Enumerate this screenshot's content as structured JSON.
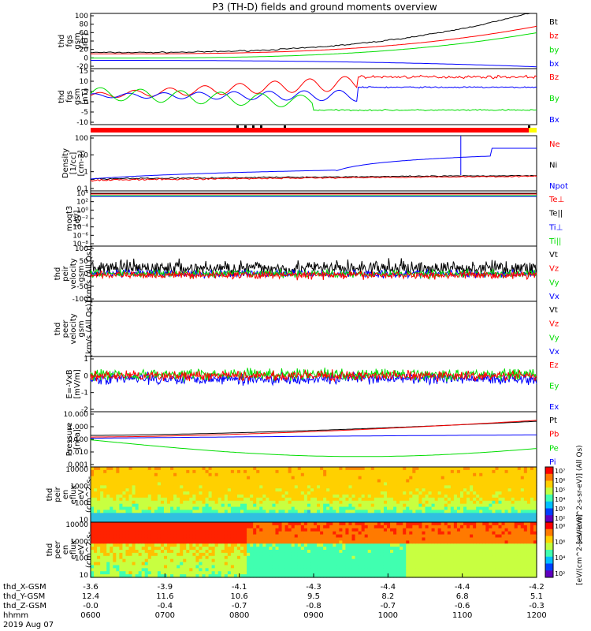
{
  "title": "P3 (TH-D) fields and ground moments overview",
  "colors": {
    "black": "#000000",
    "red": "#ff0000",
    "green": "#00dd00",
    "blue": "#0000ff"
  },
  "chart_data": [
    {
      "type": "line",
      "id": "p1",
      "ylabel": [
        "thd",
        "fgs",
        "gsm",
        "[nT]"
      ],
      "yticks": [
        "100",
        "80",
        "60",
        "40",
        "20",
        "0",
        "-20"
      ],
      "ylim": [
        -20,
        100
      ],
      "series": [
        {
          "name": "Bt",
          "color": "#000000"
        },
        {
          "name": "bz",
          "color": "#ff0000"
        },
        {
          "name": "by",
          "color": "#00dd00"
        },
        {
          "name": "bx",
          "color": "#0000ff"
        }
      ]
    },
    {
      "type": "line",
      "id": "p2",
      "ylabel": [
        "thd",
        "fgs",
        "gsm",
        "[nT]"
      ],
      "yticks": [
        "15",
        "10",
        "5",
        "0",
        "-5",
        "-10"
      ],
      "ylim": [
        -12,
        15
      ],
      "series": [
        {
          "name": "Bz",
          "color": "#ff0000"
        },
        {
          "name": "By",
          "color": "#00dd00"
        },
        {
          "name": "Bx",
          "color": "#0000ff"
        }
      ]
    },
    {
      "type": "line",
      "id": "p3",
      "ylabel": [
        "Density",
        "[1/cc]",
        "[cm-3]"
      ],
      "yticks": [
        "100",
        "10",
        "1",
        "0.1"
      ],
      "ylim": [
        0.05,
        200
      ],
      "log": true,
      "series": [
        {
          "name": "Ne",
          "color": "#ff0000"
        },
        {
          "name": "Ni",
          "color": "#000000"
        },
        {
          "name": "Npot",
          "color": "#0000ff"
        }
      ]
    },
    {
      "type": "line",
      "id": "p4",
      "ylabel": [
        "moqt3",
        "[eV]"
      ],
      "yticks": [
        "10⁴",
        "10²",
        "10⁰",
        "10⁻²",
        "10⁻⁴",
        "10⁻⁶",
        "10⁻⁸"
      ],
      "log": true,
      "series": [
        {
          "name": "Te⊥",
          "color": "#ff0000"
        },
        {
          "name": "Te||",
          "color": "#000000"
        },
        {
          "name": "Ti⊥",
          "color": "#0000ff"
        },
        {
          "name": "Ti||",
          "color": "#00dd00"
        }
      ]
    },
    {
      "type": "line",
      "id": "p5",
      "ylabel": [
        "thd",
        "peir",
        "velocity",
        "gsm",
        "[km/s (All Qs)]"
      ],
      "yticks": [
        "100",
        "50",
        "0",
        "-50",
        "-100"
      ],
      "ylim": [
        -100,
        100
      ],
      "series": [
        {
          "name": "Vt",
          "color": "#000000"
        },
        {
          "name": "Vz",
          "color": "#ff0000"
        },
        {
          "name": "Vy",
          "color": "#00dd00"
        },
        {
          "name": "Vx",
          "color": "#0000ff"
        }
      ]
    },
    {
      "type": "line",
      "id": "p6",
      "ylabel": [
        "thd",
        "peer",
        "velocity",
        "gsm",
        "[km/s (All Qs)]"
      ],
      "yticks": [],
      "series": [
        {
          "name": "Vt",
          "color": "#000000"
        },
        {
          "name": "Vz",
          "color": "#ff0000"
        },
        {
          "name": "Vy",
          "color": "#00dd00"
        },
        {
          "name": "Vx",
          "color": "#0000ff"
        }
      ]
    },
    {
      "type": "line",
      "id": "p7",
      "ylabel": [
        "E=-VxB",
        "[mV/m]"
      ],
      "yticks": [
        "1",
        "0",
        "-1",
        "-2"
      ],
      "ylim": [
        -2.4,
        1.6
      ],
      "series": [
        {
          "name": "Ez",
          "color": "#ff0000"
        },
        {
          "name": "Ey",
          "color": "#00dd00"
        },
        {
          "name": "Ex",
          "color": "#0000ff"
        }
      ]
    },
    {
      "type": "line",
      "id": "p8",
      "ylabel": [
        "Pressure",
        "[nPa]"
      ],
      "yticks": [
        "10.000",
        "1.000",
        "0.100",
        "0.010",
        "0.001"
      ],
      "ylim": [
        0.0007,
        14
      ],
      "log": true,
      "series": [
        {
          "name": "Pt",
          "color": "#000000"
        },
        {
          "name": "Pb",
          "color": "#ff0000"
        },
        {
          "name": "Pe",
          "color": "#00dd00"
        },
        {
          "name": "Pi",
          "color": "#0000ff"
        }
      ]
    },
    {
      "type": "heatmap",
      "id": "p9",
      "ylabel": [
        "thd",
        "peir",
        "en",
        "eflux",
        "eV",
        "(cm^2-s-",
        "sr-eV)"
      ],
      "yticks": [
        "10000",
        "1000",
        "100",
        "10"
      ]
    },
    {
      "type": "heatmap",
      "id": "p10",
      "ylabel": [
        "thd",
        "peer",
        "en",
        "eflux",
        "eV",
        "(cm^2-s-",
        "sr-eV)"
      ],
      "yticks": [
        "10000",
        "1000",
        "100",
        "10"
      ]
    }
  ],
  "colorbar1": {
    "label": "[eV/(cm^2-s-sr-eV)] (All Qs)",
    "ticks": [
      "10⁷",
      "10⁶",
      "10⁵",
      "10⁴",
      "10³",
      "10²"
    ]
  },
  "colorbar2": {
    "label": "[eV/(cm^2-s-sr-eV)]",
    "ticks": [
      "10⁸",
      "10⁶",
      "10⁴",
      "10²"
    ]
  },
  "xaxis": {
    "rows": [
      {
        "label": "thd_X-GSM",
        "values": [
          "-3.6",
          "-3.9",
          "-4.1",
          "-4.3",
          "-4.4",
          "-4.4",
          "-4.2"
        ]
      },
      {
        "label": "thd_Y-GSM",
        "values": [
          "12.4",
          "11.6",
          "10.6",
          "9.5",
          "8.2",
          "6.8",
          "5.1"
        ]
      },
      {
        "label": "thd_Z-GSM",
        "values": [
          "-0.0",
          "-0.4",
          "-0.7",
          "-0.8",
          "-0.7",
          "-0.6",
          "-0.3"
        ]
      },
      {
        "label": "hhmm",
        "values": [
          "0600",
          "0700",
          "0800",
          "0900",
          "1000",
          "1100",
          "1200"
        ]
      }
    ],
    "date": "2019 Aug 07"
  }
}
